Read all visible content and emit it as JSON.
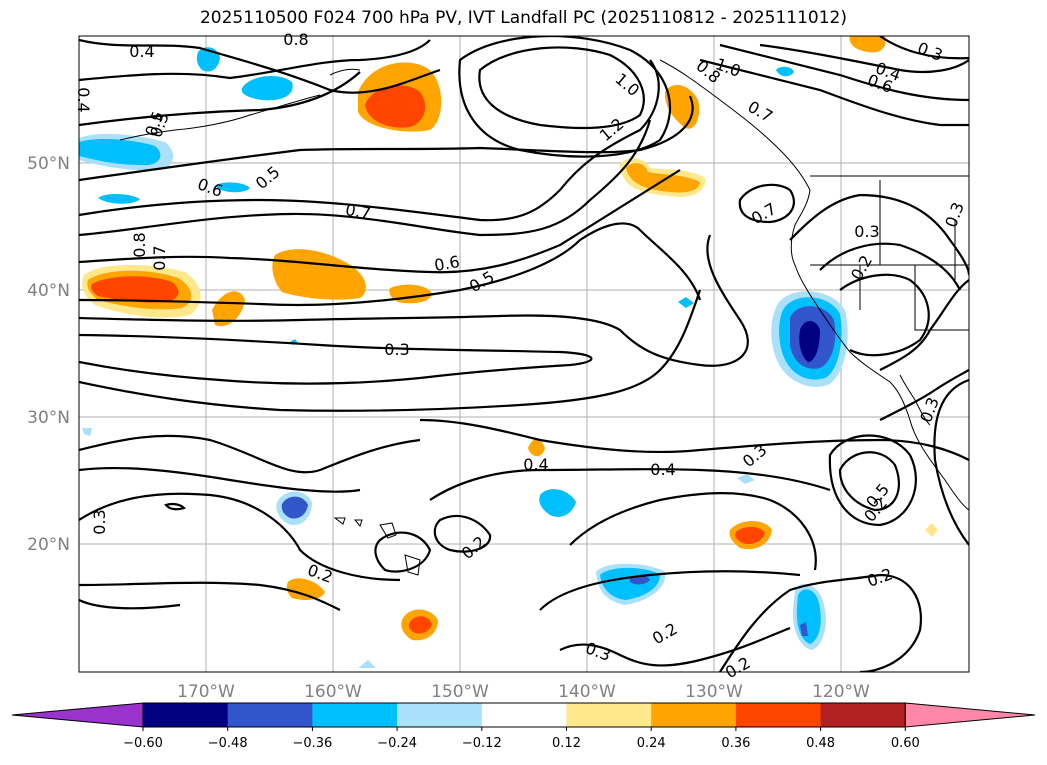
{
  "title": "2025110500 F024 700 hPa PV, IVT Landfall PC (2025110812 - 2025111012)",
  "latitude_labels": [
    "50°N",
    "40°N",
    "30°N",
    "20°N"
  ],
  "longitude_labels": [
    "170°W",
    "160°W",
    "150°W",
    "140°W",
    "130°W",
    "120°W"
  ],
  "colorbar": {
    "ticks": [
      "−0.60",
      "−0.48",
      "−0.36",
      "−0.24",
      "−0.12",
      "0.12",
      "0.24",
      "0.36",
      "0.48",
      "0.60"
    ],
    "colors": [
      "#9933cc",
      "#000080",
      "#3355cc",
      "#00bfff",
      "#aae0fa",
      "#ffffff",
      "#ffe88c",
      "#ffa500",
      "#ff4500",
      "#b22222",
      "#ff88aa"
    ]
  },
  "contour_labels": [
    "0.4",
    "0.8",
    "0.4",
    "0.5",
    "1.0",
    "1.2",
    "0.8",
    "0.7",
    "1.0",
    "0.3",
    "0.4",
    "0.6",
    "0.5",
    "0.6",
    "0.5",
    "0.7",
    "0.7",
    "0.3",
    "0.2",
    "0.8",
    "0.7",
    "0.6",
    "0.5",
    "0.3",
    "0.4",
    "0.4",
    "0.3",
    "0.3",
    "0.3",
    "0.2",
    "0.2",
    "0.3",
    "0.2",
    "0.2",
    "0.2",
    "0.5",
    "0.2",
    "0.3"
  ]
}
